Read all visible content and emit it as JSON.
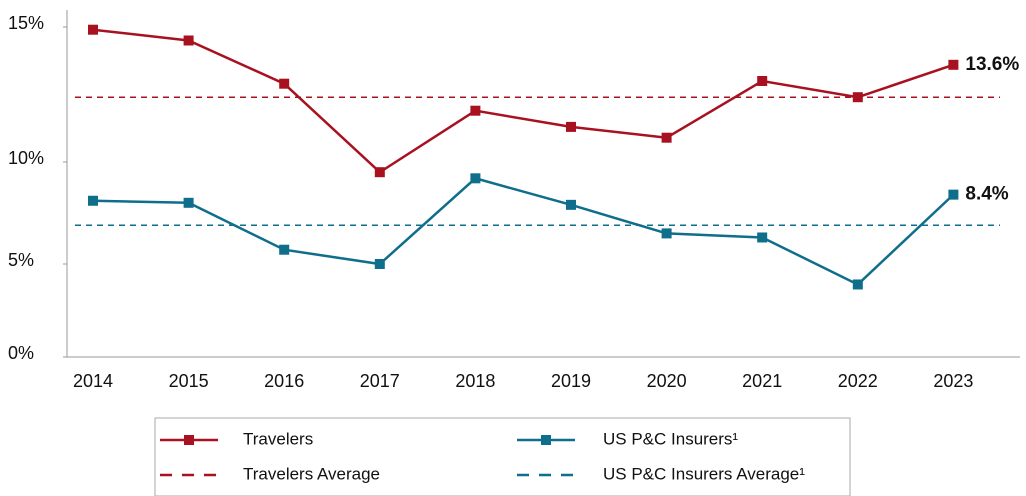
{
  "chart_data": {
    "type": "line",
    "categories": [
      "2014",
      "2015",
      "2016",
      "2017",
      "2018",
      "2019",
      "2020",
      "2021",
      "2022",
      "2023"
    ],
    "series": [
      {
        "name": "Travelers",
        "color": "#a8111f",
        "values": [
          14.9,
          14.5,
          12.9,
          9.5,
          11.9,
          11.3,
          10.9,
          13.0,
          12.4,
          13.6
        ],
        "value_labels": [
          null,
          null,
          null,
          null,
          null,
          null,
          null,
          null,
          null,
          "13.6%"
        ]
      },
      {
        "name": "US P&C Insurers¹",
        "color": "#0e6e8c",
        "values": [
          8.1,
          8.0,
          5.7,
          5.0,
          9.2,
          7.9,
          6.5,
          6.3,
          3.9,
          8.4
        ],
        "value_labels": [
          null,
          null,
          null,
          null,
          null,
          null,
          null,
          null,
          null,
          "8.4%"
        ]
      }
    ],
    "averages": [
      {
        "name": "Travelers Average",
        "color": "#a8111f",
        "value": 12.4
      },
      {
        "name": "US P&C Insurers Average¹",
        "color": "#0e6e8c",
        "value": 6.9
      }
    ],
    "ylim": [
      0,
      15.6
    ],
    "yticks": [
      {
        "value": 0,
        "label": "0%"
      },
      {
        "value": 5,
        "label": "5%"
      },
      {
        "value": 10,
        "label": "10%"
      },
      {
        "value": 15,
        "label": "15%"
      }
    ]
  }
}
